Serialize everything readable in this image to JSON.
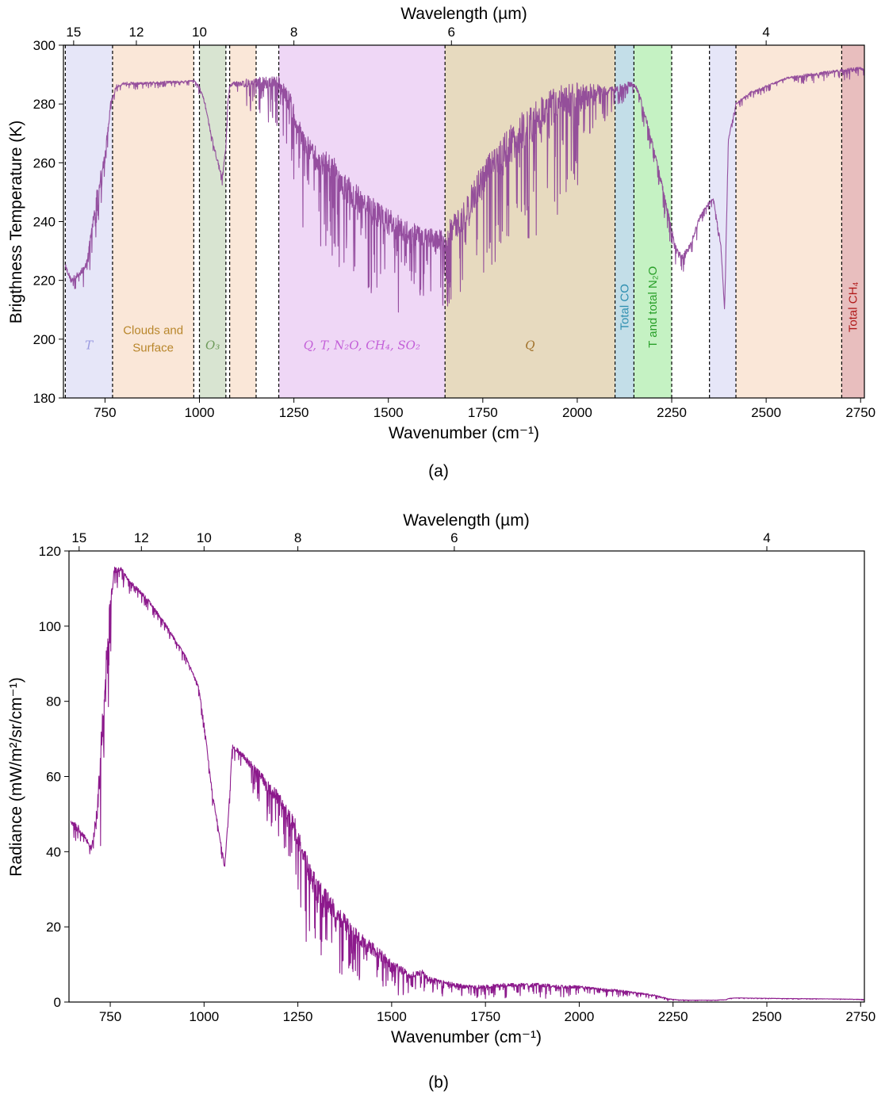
{
  "chart_data": [
    {
      "panel": "(a)",
      "type": "line",
      "xlabel": "Wavenumber (cm⁻¹)",
      "ylabel": "Brigthness Temperature (K)",
      "top_xlabel": "Wavelength (µm)",
      "xlim": [
        640,
        2760
      ],
      "ylim": [
        180,
        300
      ],
      "xticks": [
        750,
        1000,
        1250,
        1500,
        1750,
        2000,
        2250,
        2500,
        2750
      ],
      "yticks": [
        180,
        200,
        220,
        240,
        260,
        280,
        300
      ],
      "top_ticks": [
        {
          "label": "15",
          "wavenumber": 667
        },
        {
          "label": "12",
          "wavenumber": 833
        },
        {
          "label": "10",
          "wavenumber": 1000
        },
        {
          "label": "8",
          "wavenumber": 1250
        },
        {
          "label": "6",
          "wavenumber": 1667
        },
        {
          "label": "4",
          "wavenumber": 2500
        }
      ],
      "line_color": "#8b3f96",
      "series": [
        {
          "x": [
            645,
            660,
            680,
            700,
            715,
            730,
            750,
            765,
            780,
            800,
            850,
            900,
            950,
            985,
            1000,
            1015,
            1030,
            1045,
            1060,
            1070,
            1075,
            1080,
            1090,
            1120,
            1160,
            1210,
            1240,
            1270,
            1300,
            1350,
            1400,
            1450,
            1500,
            1550,
            1600,
            1640,
            1650,
            1660,
            1700,
            1750,
            1800,
            1850,
            1900,
            1950,
            2000,
            2050,
            2100,
            2120,
            2140,
            2160,
            2180,
            2200,
            2220,
            2240,
            2260,
            2280,
            2300,
            2320,
            2340,
            2360,
            2380,
            2390,
            2400,
            2420,
            2460,
            2500,
            2560,
            2620,
            2680,
            2740,
            2760
          ],
          "y": [
            225,
            220,
            222,
            225,
            237,
            250,
            262,
            280,
            286,
            287,
            287,
            287.5,
            287.5,
            288,
            286,
            280,
            270,
            262,
            255,
            265,
            280,
            286,
            287,
            287,
            287.5,
            287,
            280,
            268,
            262,
            258,
            250,
            244,
            240,
            236,
            235,
            234,
            232,
            236,
            242,
            255,
            263,
            270,
            276,
            280,
            282,
            284,
            285,
            286,
            287,
            285,
            276,
            266,
            255,
            243,
            231,
            228,
            232,
            240,
            245,
            248,
            232,
            210,
            268,
            280,
            284,
            286,
            289,
            290,
            291,
            292,
            292
          ],
          "noise": [
            4,
            5,
            6,
            6,
            10,
            14,
            12,
            6,
            3,
            3,
            2,
            2,
            2,
            1,
            3,
            3,
            4,
            4,
            3,
            2,
            2,
            2,
            3,
            8,
            10,
            15,
            22,
            25,
            25,
            28,
            28,
            28,
            25,
            25,
            22,
            20,
            20,
            25,
            28,
            32,
            35,
            38,
            38,
            35,
            30,
            15,
            6,
            6,
            5,
            5,
            5,
            6,
            6,
            8,
            6,
            6,
            5,
            5,
            4,
            3,
            3,
            2,
            2,
            2,
            2,
            2,
            2,
            3,
            3,
            3,
            3
          ]
        }
      ],
      "vlines": [
        645,
        770,
        985,
        1000,
        1070,
        1080,
        1150,
        1210,
        1650,
        2100,
        2150,
        2250,
        2350,
        2420,
        2700
      ],
      "regions": [
        {
          "x0": 645,
          "x1": 770,
          "color": "#c8c8f0",
          "label": "T",
          "italic": true,
          "label_color": "#9a9ae0",
          "vertical": false
        },
        {
          "x0": 770,
          "x1": 985,
          "color": "#f5c9a8",
          "label_lines": [
            "Clouds and",
            "Surface"
          ],
          "italic": false,
          "label_color": "#b8862b",
          "vertical": false
        },
        {
          "x0": 1000,
          "x1": 1070,
          "color": "#a9c49a",
          "label": "O₃",
          "italic": true,
          "label_color": "#6e9a5a",
          "vertical": false
        },
        {
          "x0": 1080,
          "x1": 1150,
          "color": "#f5c9a8",
          "label": "",
          "italic": false,
          "label_color": "#000000",
          "vertical": false
        },
        {
          "x0": 1210,
          "x1": 1650,
          "color": "#dca6ea",
          "label": "Q, T, N₂O, CH₄, SO₂",
          "italic": true,
          "label_color": "#c35fd8",
          "vertical": false
        },
        {
          "x0": 1650,
          "x1": 2100,
          "color": "#c9ac72",
          "label": "Q",
          "italic": true,
          "label_color": "#a0712a",
          "vertical": false
        },
        {
          "x0": 2100,
          "x1": 2150,
          "color": "#7ab6cc",
          "label": "Total CO",
          "italic": false,
          "label_color": "#2f8fb0",
          "vertical": true
        },
        {
          "x0": 2150,
          "x1": 2250,
          "color": "#7ee27a",
          "label": "T and total N₂O",
          "italic": false,
          "label_color": "#2aa02a",
          "vertical": true
        },
        {
          "x0": 2350,
          "x1": 2420,
          "color": "#c8c8f0",
          "label": "",
          "italic": false,
          "label_color": "#000000",
          "vertical": false
        },
        {
          "x0": 2420,
          "x1": 2700,
          "color": "#f5c9a8",
          "label": "",
          "italic": false,
          "label_color": "#000000",
          "vertical": false
        },
        {
          "x0": 2700,
          "x1": 2760,
          "color": "#cd6e6e",
          "label": "Total CH₄",
          "italic": false,
          "label_color": "#b01919",
          "vertical": true
        }
      ]
    },
    {
      "panel": "(b)",
      "type": "line",
      "xlabel": "Wavenumber (cm⁻¹)",
      "ylabel": "Radiance (mW/m²/sr/cm⁻¹)",
      "top_xlabel": "Wavelength (µm)",
      "xlim": [
        640,
        2760
      ],
      "ylim": [
        0,
        120
      ],
      "xticks": [
        750,
        1000,
        1250,
        1500,
        1750,
        2000,
        2250,
        2500,
        2750
      ],
      "yticks": [
        0,
        20,
        40,
        60,
        80,
        100,
        120
      ],
      "top_ticks": [
        {
          "label": "15",
          "wavenumber": 667
        },
        {
          "label": "12",
          "wavenumber": 833
        },
        {
          "label": "10",
          "wavenumber": 1000
        },
        {
          "label": "8",
          "wavenumber": 1250
        },
        {
          "label": "6",
          "wavenumber": 1667
        },
        {
          "label": "4",
          "wavenumber": 2500
        }
      ],
      "line_color": "#800080",
      "series": [
        {
          "x": [
            645,
            660,
            680,
            700,
            715,
            730,
            745,
            760,
            780,
            800,
            850,
            900,
            950,
            985,
            1000,
            1020,
            1040,
            1055,
            1065,
            1075,
            1100,
            1150,
            1200,
            1240,
            1270,
            1300,
            1350,
            1400,
            1450,
            1500,
            1550,
            1580,
            1600,
            1650,
            1700,
            1750,
            1800,
            1850,
            1900,
            1950,
            2000,
            2050,
            2100,
            2150,
            2200,
            2240,
            2260,
            2300,
            2350,
            2390,
            2400,
            2420,
            2500,
            2600,
            2700,
            2760
          ],
          "y": [
            48,
            47,
            44,
            41,
            50,
            75,
            100,
            115,
            115,
            112,
            107,
            100,
            92,
            84,
            74,
            57,
            45,
            36,
            50,
            68,
            66,
            60,
            54,
            47,
            37,
            30,
            24,
            18,
            14,
            10,
            7,
            8,
            6,
            5,
            4,
            4,
            4.5,
            4.5,
            4.5,
            4,
            4,
            3.5,
            3,
            2.5,
            1.8,
            0.8,
            0.6,
            0.5,
            0.5,
            0.6,
            1.0,
            1.1,
            1.0,
            0.9,
            0.8,
            0.7
          ],
          "noise": [
            4,
            5,
            4,
            4,
            15,
            25,
            20,
            5,
            4,
            3,
            3,
            2,
            2,
            2,
            3,
            3,
            3,
            3,
            3,
            3,
            4,
            8,
            10,
            15,
            18,
            18,
            15,
            12,
            10,
            7,
            5,
            4,
            4,
            3,
            3,
            3,
            3,
            3,
            3,
            3,
            2,
            2,
            2,
            1,
            1,
            0.5,
            0.3,
            0.2,
            0.2,
            0.2,
            0.2,
            0.2,
            0.2,
            0.2,
            0.2,
            0.2
          ]
        }
      ]
    }
  ],
  "panel_labels": [
    "(a)",
    "(b)"
  ]
}
